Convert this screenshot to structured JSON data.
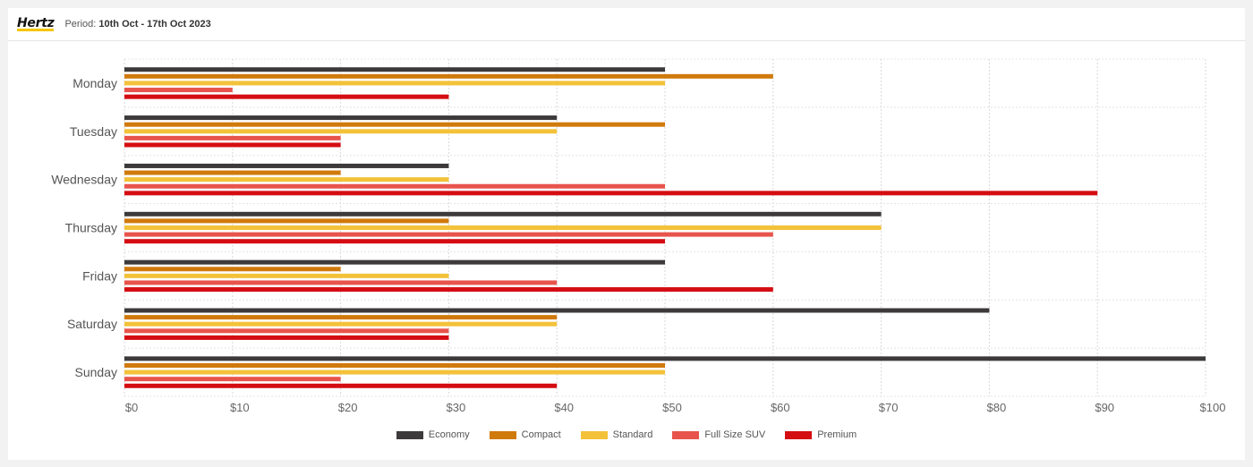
{
  "header": {
    "logo_text": "Hertz",
    "period_label": "Period:",
    "period_value": "10th Oct - 17th Oct 2023"
  },
  "chart_data": {
    "type": "bar",
    "orientation": "horizontal",
    "categories": [
      "Monday",
      "Tuesday",
      "Wednesday",
      "Thursday",
      "Friday",
      "Saturday",
      "Sunday"
    ],
    "series": [
      {
        "name": "Economy",
        "color": "#3d3a3b",
        "values": [
          50,
          40,
          30,
          70,
          50,
          80,
          100
        ]
      },
      {
        "name": "Compact",
        "color": "#d07a0c",
        "values": [
          60,
          50,
          20,
          30,
          20,
          40,
          50
        ]
      },
      {
        "name": "Standard",
        "color": "#f3c23a",
        "values": [
          50,
          40,
          30,
          70,
          30,
          40,
          50
        ]
      },
      {
        "name": "Full Size SUV",
        "color": "#e8544c",
        "values": [
          10,
          20,
          50,
          60,
          40,
          30,
          20
        ]
      },
      {
        "name": "Premium",
        "color": "#d40d12",
        "values": [
          30,
          20,
          90,
          50,
          60,
          30,
          40
        ]
      }
    ],
    "xlim": [
      0,
      100
    ],
    "xticks": [
      "$0",
      "$10",
      "$20",
      "$30",
      "$40",
      "$50",
      "$60",
      "$70",
      "$80",
      "$90",
      "$100"
    ],
    "grid": true,
    "legend_position": "bottom"
  }
}
